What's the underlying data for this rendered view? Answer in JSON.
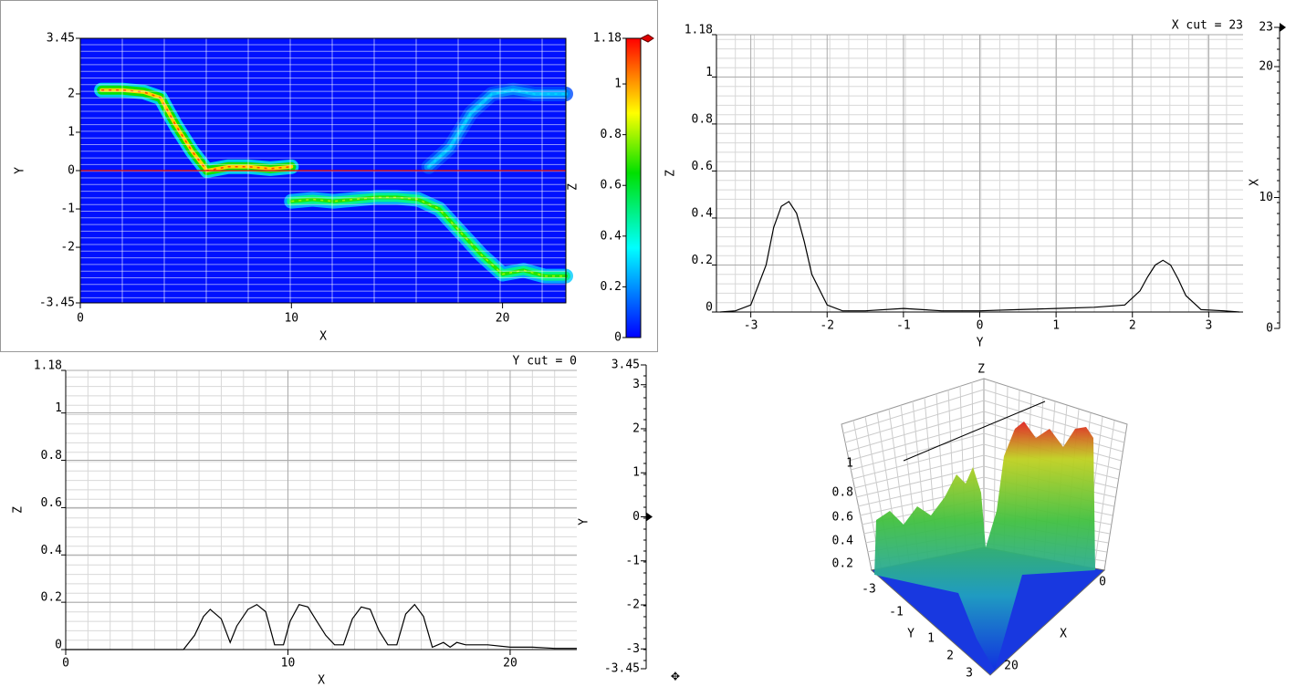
{
  "chart_data": [
    {
      "type": "heatmap",
      "xlabel": "X",
      "ylabel": "Y",
      "zlabel": "Z",
      "xlim": [
        0,
        23
      ],
      "ylim": [
        -3.45,
        3.45
      ],
      "xticks": [
        0,
        10,
        20
      ],
      "yticks": [
        -3.45,
        -2,
        -1,
        0,
        1,
        2,
        3.45
      ],
      "zlim": [
        0,
        1.18
      ],
      "zticks": [
        0,
        0.2,
        0.4,
        0.6,
        0.8,
        1,
        1.18
      ],
      "y_cut": 0,
      "ridges": [
        {
          "x": [
            1,
            2,
            3,
            3.8,
            4.5,
            5.3,
            6,
            7,
            8,
            9,
            10
          ],
          "y": [
            2.1,
            2.1,
            2.05,
            1.9,
            1.2,
            0.5,
            0,
            0.1,
            0.1,
            0.05,
            0.1
          ],
          "peak": 1.1
        },
        {
          "x": [
            10,
            11,
            12,
            13,
            14,
            15,
            16,
            17,
            18,
            19,
            20,
            21,
            22,
            23
          ],
          "y": [
            -0.8,
            -0.75,
            -0.8,
            -0.75,
            -0.7,
            -0.7,
            -0.75,
            -1.0,
            -1.6,
            -2.2,
            -2.7,
            -2.6,
            -2.75,
            -2.75
          ],
          "peak": 0.8
        },
        {
          "x": [
            16.5,
            17.5,
            18.5,
            19.5,
            20.5,
            21.5,
            23
          ],
          "y": [
            0.1,
            0.6,
            1.5,
            2.0,
            2.1,
            2.0,
            2.0
          ],
          "peak": 0.3
        }
      ]
    },
    {
      "type": "line",
      "title": "X cut = 23",
      "xlabel": "Y",
      "ylabel": "Z",
      "xlim": [
        -3.45,
        3.45
      ],
      "ylim": [
        0,
        1.18
      ],
      "xticks": [
        -3,
        -2,
        -1,
        0,
        1,
        2,
        3
      ],
      "yticks": [
        0,
        0.2,
        0.4,
        0.6,
        0.8,
        1,
        1.18
      ],
      "x": [
        -3.4,
        -3.2,
        -3.0,
        -2.8,
        -2.7,
        -2.6,
        -2.5,
        -2.4,
        -2.3,
        -2.2,
        -2.0,
        -1.8,
        -1.5,
        -1.0,
        -0.5,
        0,
        0.5,
        1.0,
        1.5,
        1.9,
        2.1,
        2.2,
        2.3,
        2.4,
        2.5,
        2.6,
        2.7,
        2.9,
        3.2,
        3.4
      ],
      "values": [
        0,
        0.005,
        0.03,
        0.2,
        0.36,
        0.45,
        0.47,
        0.42,
        0.3,
        0.16,
        0.03,
        0.005,
        0.005,
        0.015,
        0.005,
        0.005,
        0.01,
        0.015,
        0.02,
        0.03,
        0.09,
        0.15,
        0.2,
        0.22,
        0.2,
        0.14,
        0.07,
        0.01,
        0.005,
        0
      ],
      "slider": {
        "label": "X",
        "lim": [
          0,
          23
        ],
        "ticks": [
          0,
          10,
          20,
          23
        ],
        "value": 23
      }
    },
    {
      "type": "line",
      "title": "Y cut = 0",
      "xlabel": "X",
      "ylabel": "Z",
      "xlim": [
        0,
        23
      ],
      "ylim": [
        0,
        1.18
      ],
      "xticks": [
        0,
        10,
        20
      ],
      "yticks": [
        0,
        0.2,
        0.4,
        0.6,
        0.8,
        1,
        1.18
      ],
      "x": [
        0,
        3.5,
        5.3,
        5.8,
        6.2,
        6.5,
        7,
        7.4,
        7.7,
        8.2,
        8.6,
        9,
        9.4,
        9.8,
        10.1,
        10.5,
        10.9,
        11.3,
        11.7,
        12.1,
        12.5,
        12.9,
        13.3,
        13.7,
        14.1,
        14.5,
        14.9,
        15.3,
        15.7,
        16.1,
        16.5,
        17,
        17.3,
        17.6,
        18,
        18.5,
        19,
        20,
        21,
        22,
        23
      ],
      "values": [
        0,
        0,
        0,
        0.06,
        0.14,
        0.17,
        0.13,
        0.03,
        0.1,
        0.17,
        0.19,
        0.16,
        0.02,
        0.02,
        0.12,
        0.19,
        0.18,
        0.12,
        0.06,
        0.02,
        0.02,
        0.13,
        0.18,
        0.17,
        0.08,
        0.02,
        0.02,
        0.15,
        0.19,
        0.14,
        0.01,
        0.03,
        0.01,
        0.03,
        0.02,
        0.02,
        0.02,
        0.01,
        0.01,
        0.005,
        0.005
      ],
      "slider": {
        "label": "Y",
        "lim": [
          -3.45,
          3.45
        ],
        "ticks": [
          -3.45,
          -3,
          -2,
          -1,
          0,
          1,
          2,
          3,
          3.45
        ],
        "value": 0
      }
    },
    {
      "type": "surface",
      "xlabel": "X",
      "ylabel": "Y",
      "zlabel": "Z",
      "xticks": [
        0,
        20
      ],
      "yticks": [
        -3,
        -1,
        1,
        2,
        3
      ],
      "zticks": [
        0.2,
        0.4,
        0.6,
        0.8,
        1
      ]
    }
  ]
}
